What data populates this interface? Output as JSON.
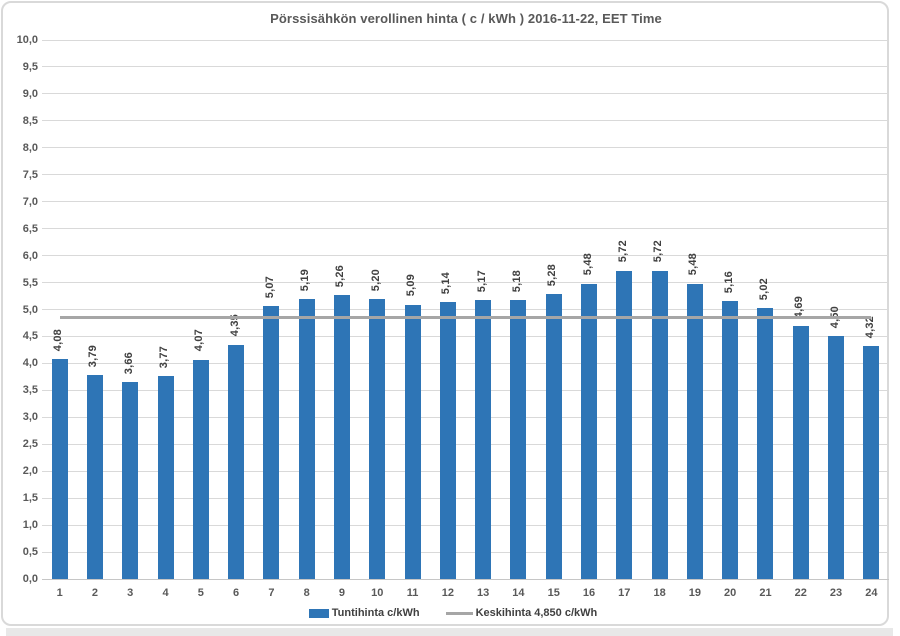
{
  "chart_data": {
    "type": "bar",
    "title": "Pörssisähkön verollinen hinta ( c / kWh ) 2016-11-22, EET Time",
    "categories": [
      "1",
      "2",
      "3",
      "4",
      "5",
      "6",
      "7",
      "8",
      "9",
      "10",
      "11",
      "12",
      "13",
      "14",
      "15",
      "16",
      "17",
      "18",
      "19",
      "20",
      "21",
      "22",
      "23",
      "24"
    ],
    "values": [
      4.08,
      3.79,
      3.66,
      3.77,
      4.07,
      4.35,
      5.07,
      5.19,
      5.26,
      5.2,
      5.09,
      5.14,
      5.17,
      5.18,
      5.28,
      5.48,
      5.72,
      5.72,
      5.48,
      5.16,
      5.02,
      4.69,
      4.5,
      4.32
    ],
    "value_labels": [
      "4,08",
      "3,79",
      "3,66",
      "3,77",
      "4,07",
      "4,35",
      "5,07",
      "5,19",
      "5,26",
      "5,20",
      "5,09",
      "5,14",
      "5,17",
      "5,18",
      "5,28",
      "5,48",
      "5,72",
      "5,72",
      "5,48",
      "5,16",
      "5,02",
      "4,69",
      "4,50",
      "4,32"
    ],
    "xlabel": "",
    "ylabel": "",
    "ylim": [
      0,
      10
    ],
    "ytick_step": 0.5,
    "ytick_labels": [
      "0,0",
      "0,5",
      "1,0",
      "1,5",
      "2,0",
      "2,5",
      "3,0",
      "3,5",
      "4,0",
      "4,5",
      "5,0",
      "5,5",
      "6,0",
      "6,5",
      "7,0",
      "7,5",
      "8,0",
      "8,5",
      "9,0",
      "9,5",
      "10,0"
    ],
    "grid": true,
    "legend_position": "bottom",
    "average_line": {
      "value": 4.85,
      "label": "Keskihinta 4,850 c/kWh"
    },
    "series_label": "Tuntihinta c/kWh",
    "colors": {
      "bar": "#2E75B6",
      "average_line": "#A6A6A6",
      "gridline": "#D9D9D9",
      "axis_text": "#595959",
      "data_label_text": "#404040",
      "title_text": "#595959",
      "frame_border": "#D9D9D9"
    }
  }
}
